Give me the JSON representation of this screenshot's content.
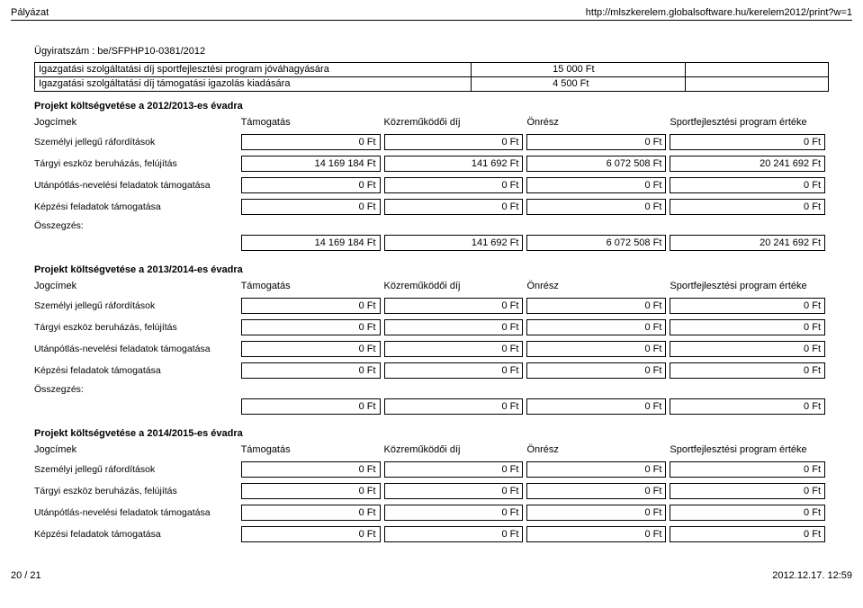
{
  "header": {
    "left": "Pályázat",
    "right": "http://mlszkerelem.globalsoftware.hu/kerelem2012/print?w=1"
  },
  "case_number": "Ügyiratszám : be/SFPHP10-0381/2012",
  "fees": {
    "rows": [
      {
        "label": "Igazgatási szolgáltatási díj sportfejlesztési program jóváhagyására",
        "value": "15 000 Ft"
      },
      {
        "label": "Igazgatási szolgáltatási díj támogatási igazolás kiadására",
        "value": "4 500 Ft"
      }
    ]
  },
  "columns": {
    "c0": "Jogcímek",
    "c1": "Támogatás",
    "c2": "Közreműködői díj",
    "c3": "Önrész",
    "c4": "Sportfejlesztési program értéke"
  },
  "row_labels": {
    "r0": "Személyi jellegű ráfordítások",
    "r1": "Tárgyi eszköz beruházás, felújítás",
    "r2": "Utánpótlás-nevelési feladatok támogatása",
    "r3": "Képzési feladatok támogatása",
    "sum_label": "Összegzés:"
  },
  "sections": [
    {
      "title": "Projekt költségvetése a 2012/2013-es évadra",
      "rows": [
        [
          "0 Ft",
          "0 Ft",
          "0 Ft",
          "0 Ft"
        ],
        [
          "14 169 184 Ft",
          "141 692 Ft",
          "6 072 508 Ft",
          "20 241 692 Ft"
        ],
        [
          "0 Ft",
          "0 Ft",
          "0 Ft",
          "0 Ft"
        ],
        [
          "0 Ft",
          "0 Ft",
          "0 Ft",
          "0 Ft"
        ]
      ],
      "sum": [
        "14 169 184 Ft",
        "141 692 Ft",
        "6 072 508 Ft",
        "20 241 692 Ft"
      ]
    },
    {
      "title": "Projekt költségvetése a 2013/2014-es évadra",
      "rows": [
        [
          "0 Ft",
          "0 Ft",
          "0 Ft",
          "0 Ft"
        ],
        [
          "0 Ft",
          "0 Ft",
          "0 Ft",
          "0 Ft"
        ],
        [
          "0 Ft",
          "0 Ft",
          "0 Ft",
          "0 Ft"
        ],
        [
          "0 Ft",
          "0 Ft",
          "0 Ft",
          "0 Ft"
        ]
      ],
      "sum": [
        "0 Ft",
        "0 Ft",
        "0 Ft",
        "0 Ft"
      ]
    },
    {
      "title": "Projekt költségvetése a 2014/2015-es évadra",
      "rows": [
        [
          "0 Ft",
          "0 Ft",
          "0 Ft",
          "0 Ft"
        ],
        [
          "0 Ft",
          "0 Ft",
          "0 Ft",
          "0 Ft"
        ],
        [
          "0 Ft",
          "0 Ft",
          "0 Ft",
          "0 Ft"
        ],
        [
          "0 Ft",
          "0 Ft",
          "0 Ft",
          "0 Ft"
        ]
      ],
      "sum": null
    }
  ],
  "footer": {
    "left": "20 / 21",
    "right": "2012.12.17. 12:59"
  }
}
